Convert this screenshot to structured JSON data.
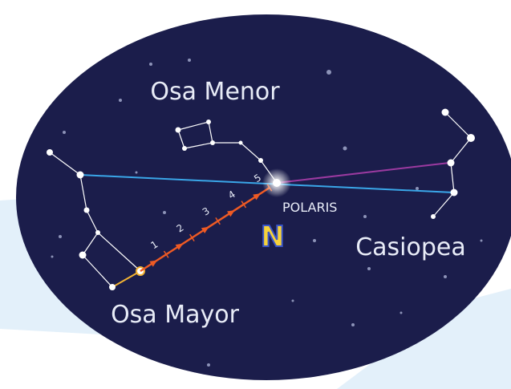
{
  "labels": {
    "little_dipper": "Osa Menor",
    "polaris": "POLARIS",
    "north": "N",
    "cassiopeia": "Casiopea",
    "big_dipper": "Osa Mayor"
  },
  "steps": [
    1,
    2,
    3,
    4,
    5
  ]
}
